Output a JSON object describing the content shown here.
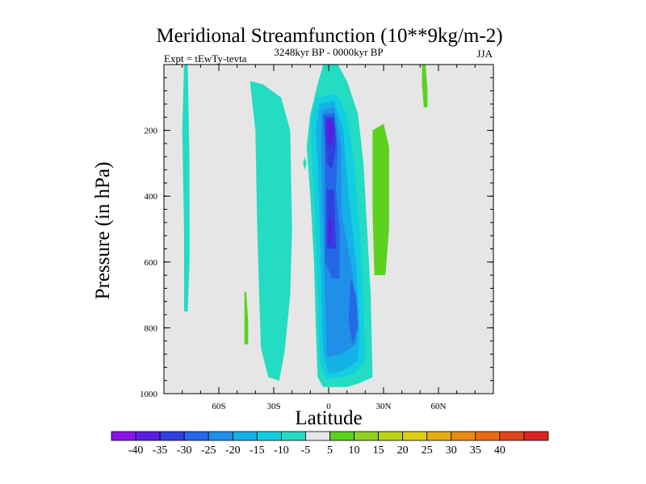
{
  "chart_data": {
    "type": "heatmap",
    "title": "Meridional Streamfunction (10**9kg/m-2)",
    "left_subtitle": "Expt = tEwTy-tevta",
    "center_subtitle": "3248kyr BP - 0000kyr BP",
    "right_subtitle": "JJA",
    "xlabel": "Latitude",
    "ylabel": "Pressure (in hPa)",
    "xlim": [
      -90,
      90
    ],
    "ylim": [
      1000,
      0
    ],
    "x_ticks": [
      {
        "value": -60,
        "label": "60S"
      },
      {
        "value": -30,
        "label": "30S"
      },
      {
        "value": 0,
        "label": "0"
      },
      {
        "value": 30,
        "label": "30N"
      },
      {
        "value": 60,
        "label": "60N"
      }
    ],
    "y_ticks": [
      {
        "value": 200,
        "label": "200"
      },
      {
        "value": 400,
        "label": "400"
      },
      {
        "value": 600,
        "label": "600"
      },
      {
        "value": 800,
        "label": "800"
      },
      {
        "value": 1000,
        "label": "1000"
      }
    ],
    "background_color": "#e6e6e6",
    "colorbar": {
      "labels": [
        "-40",
        "-35",
        "-30",
        "-25",
        "-20",
        "-15",
        "-10",
        "-5",
        "5",
        "10",
        "15",
        "20",
        "25",
        "30",
        "35",
        "40"
      ],
      "colors": [
        "#8a14e8",
        "#5a1ee0",
        "#2f3fe0",
        "#2468e6",
        "#1f8fe8",
        "#14b1e8",
        "#12cfe0",
        "#24dcc2",
        "#e6e6e6",
        "#5ad21e",
        "#8cd21e",
        "#b9d414",
        "#ddd012",
        "#e6ad12",
        "#e88a14",
        "#e86a14",
        "#e0461e",
        "#d8241e"
      ]
    },
    "regions": [
      {
        "value": -7.5,
        "color": "#24dcc2",
        "points": [
          [
            -43,
            50
          ],
          [
            -42,
            100
          ],
          [
            -40,
            200
          ],
          [
            -39,
            500
          ],
          [
            -38,
            700
          ],
          [
            -37,
            860
          ],
          [
            -33,
            950
          ],
          [
            -27,
            960
          ],
          [
            -24,
            870
          ],
          [
            -21,
            700
          ],
          [
            -20,
            500
          ],
          [
            -21,
            200
          ],
          [
            -26,
            100
          ],
          [
            -36,
            60
          ]
        ]
      },
      {
        "value": -7.5,
        "color": "#24dcc2",
        "points": [
          [
            -3,
            -10
          ],
          [
            5,
            -10
          ],
          [
            10,
            50
          ],
          [
            16,
            150
          ],
          [
            19,
            300
          ],
          [
            21,
            500
          ],
          [
            23,
            700
          ],
          [
            24,
            950
          ],
          [
            16,
            970
          ],
          [
            10,
            980
          ],
          [
            -3,
            980
          ],
          [
            -6,
            950
          ],
          [
            -7,
            800
          ],
          [
            -8,
            600
          ],
          [
            -10,
            400
          ],
          [
            -12,
            250
          ],
          [
            -10,
            150
          ],
          [
            -6,
            60
          ]
        ]
      },
      {
        "value": -7.5,
        "color": "#24dcc2",
        "points": [
          [
            -79,
            -10
          ],
          [
            -77,
            -10
          ],
          [
            -76,
            300
          ],
          [
            -76,
            600
          ],
          [
            -77,
            750
          ],
          [
            -79,
            750
          ],
          [
            -79,
            500
          ],
          [
            -80,
            200
          ]
        ]
      },
      {
        "value": -7.5,
        "color": "#24dcc2",
        "points": [
          [
            -13,
            280
          ],
          [
            -12,
            300
          ],
          [
            -13,
            320
          ],
          [
            -14,
            300
          ]
        ]
      },
      {
        "value": -12.5,
        "color": "#12cfe0",
        "points": [
          [
            -7,
            100
          ],
          [
            4,
            90
          ],
          [
            10,
            150
          ],
          [
            14,
            300
          ],
          [
            17,
            500
          ],
          [
            19,
            700
          ],
          [
            20,
            900
          ],
          [
            14,
            940
          ],
          [
            8,
            950
          ],
          [
            -2,
            955
          ],
          [
            -5,
            900
          ],
          [
            -6,
            700
          ],
          [
            -7,
            500
          ],
          [
            -9,
            300
          ],
          [
            -10,
            180
          ]
        ]
      },
      {
        "value": -17.5,
        "color": "#14b1e8",
        "points": [
          [
            -5,
            120
          ],
          [
            3,
            110
          ],
          [
            8,
            200
          ],
          [
            11,
            400
          ],
          [
            15,
            600
          ],
          [
            17,
            800
          ],
          [
            16,
            900
          ],
          [
            8,
            930
          ],
          [
            0,
            940
          ],
          [
            -3,
            880
          ],
          [
            -4,
            650
          ],
          [
            -5,
            450
          ],
          [
            -6,
            300
          ],
          [
            -7,
            200
          ]
        ]
      },
      {
        "value": -22.5,
        "color": "#1f8fe8",
        "points": [
          [
            -4,
            140
          ],
          [
            3,
            130
          ],
          [
            7,
            250
          ],
          [
            7,
            450
          ],
          [
            12,
            600
          ],
          [
            16,
            750
          ],
          [
            15,
            850
          ],
          [
            7,
            880
          ],
          [
            -1,
            890
          ],
          [
            -2,
            700
          ],
          [
            -3,
            500
          ],
          [
            -4,
            300
          ]
        ]
      },
      {
        "value": -27.5,
        "color": "#2468e6",
        "points": [
          [
            -3,
            150
          ],
          [
            3,
            150
          ],
          [
            5,
            250
          ],
          [
            4,
            380
          ],
          [
            6,
            500
          ],
          [
            6,
            650
          ],
          [
            2,
            650
          ],
          [
            -2,
            600
          ],
          [
            -2,
            450
          ],
          [
            -2,
            300
          ]
        ]
      },
      {
        "value": -27.5,
        "color": "#2468e6",
        "points": [
          [
            12,
            650
          ],
          [
            15,
            700
          ],
          [
            16,
            800
          ],
          [
            13,
            850
          ],
          [
            11,
            780
          ]
        ]
      },
      {
        "value": -32.5,
        "color": "#2f3fe0",
        "points": [
          [
            -2,
            160
          ],
          [
            3,
            160
          ],
          [
            4,
            240
          ],
          [
            2,
            320
          ],
          [
            -1,
            300
          ]
        ]
      },
      {
        "value": -32.5,
        "color": "#2f3fe0",
        "points": [
          [
            -1,
            380
          ],
          [
            3,
            380
          ],
          [
            4,
            560
          ],
          [
            -1,
            560
          ]
        ]
      },
      {
        "value": -37.5,
        "color": "#5a1ee0",
        "points": [
          [
            -1,
            170
          ],
          [
            2,
            170
          ],
          [
            3,
            210
          ],
          [
            1,
            250
          ],
          [
            -1,
            230
          ]
        ]
      },
      {
        "value": -37.5,
        "color": "#5a1ee0",
        "points": [
          [
            0,
            470
          ],
          [
            2,
            470
          ],
          [
            2,
            540
          ],
          [
            0,
            540
          ]
        ]
      },
      {
        "value": 7.5,
        "color": "#5ad21e",
        "points": [
          [
            24,
            200
          ],
          [
            30,
            180
          ],
          [
            33,
            250
          ],
          [
            33,
            500
          ],
          [
            31,
            640
          ],
          [
            25,
            640
          ],
          [
            24,
            450
          ]
        ]
      },
      {
        "value": 7.5,
        "color": "#5ad21e",
        "points": [
          [
            51,
            -10
          ],
          [
            53,
            -10
          ],
          [
            54,
            80
          ],
          [
            54,
            130
          ],
          [
            52,
            130
          ],
          [
            51,
            60
          ]
        ]
      },
      {
        "value": 7.5,
        "color": "#5ad21e",
        "points": [
          [
            -46,
            690
          ],
          [
            -45,
            690
          ],
          [
            -44,
            780
          ],
          [
            -44,
            850
          ],
          [
            -46,
            850
          ],
          [
            -46,
            770
          ]
        ]
      }
    ]
  }
}
